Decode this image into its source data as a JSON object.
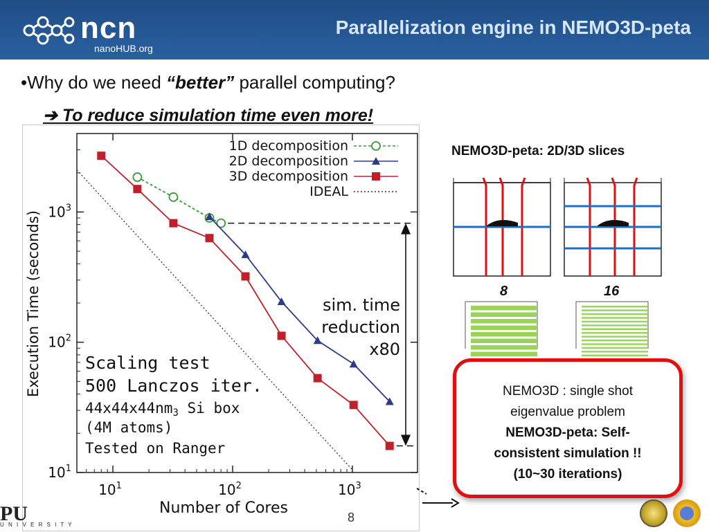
{
  "header": {
    "logo_text": "ncn",
    "logo_sub": "nanoHUB.org",
    "title": "Parallelization engine in NEMO3D-peta"
  },
  "bullet": {
    "prefix": "Why do we need ",
    "emph": "“better”",
    "suffix": " parallel computing?"
  },
  "subpoint": "To reduce simulation time even more!",
  "chart_data": {
    "type": "line",
    "xscale": "log",
    "yscale": "log",
    "xlim": [
      5,
      3500
    ],
    "ylim": [
      10,
      4000
    ],
    "xlabel": "Number of Cores",
    "ylabel": "Execution Time (seconds)",
    "xticks": [
      {
        "base": "10",
        "exp": "1",
        "v": 10
      },
      {
        "base": "10",
        "exp": "2",
        "v": 100
      },
      {
        "base": "10",
        "exp": "3",
        "v": 1000
      }
    ],
    "yticks": [
      {
        "base": "10",
        "exp": "1",
        "v": 10
      },
      {
        "base": "10",
        "exp": "2",
        "v": 100
      },
      {
        "base": "10",
        "exp": "3",
        "v": 1000
      }
    ],
    "series": [
      {
        "name": "1D decomposition",
        "color": "#3a9a3a",
        "marker": "circle",
        "dash": "4,3",
        "points": [
          [
            16,
            1850
          ],
          [
            32,
            1300
          ],
          [
            64,
            900
          ],
          [
            80,
            820
          ]
        ]
      },
      {
        "name": "2D decomposition",
        "color": "#2b3b86",
        "marker": "triangle",
        "dash": "",
        "points": [
          [
            64,
            920
          ],
          [
            128,
            470
          ],
          [
            256,
            205
          ],
          [
            512,
            103
          ],
          [
            1024,
            68
          ],
          [
            2048,
            35
          ]
        ]
      },
      {
        "name": "3D decomposition",
        "color": "#c0202c",
        "marker": "square",
        "dash": "",
        "points": [
          [
            8,
            2700
          ],
          [
            16,
            1500
          ],
          [
            32,
            820
          ],
          [
            64,
            630
          ],
          [
            128,
            320
          ],
          [
            256,
            112
          ],
          [
            512,
            53
          ],
          [
            1024,
            33
          ],
          [
            2048,
            16
          ]
        ]
      },
      {
        "name": "IDEAL",
        "color": "#333333",
        "marker": "none",
        "dash": "2,3",
        "points": [
          [
            5,
            2100
          ],
          [
            1000,
            10.5
          ]
        ]
      }
    ],
    "annotation": {
      "lines": [
        "sim. time",
        "reduction",
        "x80"
      ],
      "y_top": 820,
      "y_bottom": 16
    },
    "notes": {
      "line1": "Scaling test",
      "line2": "500 Lanczos iter.",
      "line3_main": "44x44x44nm",
      "line3_sup": "3",
      "line3_rest": " Si box",
      "line4": "(4M atoms)",
      "line5": "Tested on Ranger"
    }
  },
  "slices": {
    "title": "NEMO3D-peta: 2D/3D slices",
    "label_left": "8",
    "label_right": "16"
  },
  "callout": {
    "line1": "NEMO3D : single shot",
    "line2": "eigenvalue problem",
    "line3": "NEMO3D-peta: Self-",
    "line4": "consistent simulation !!",
    "line5": "(10~30 iterations)"
  },
  "footer": {
    "page": "8",
    "purdue": "PU",
    "purdue_sub": "U N I V E R S I T Y"
  }
}
